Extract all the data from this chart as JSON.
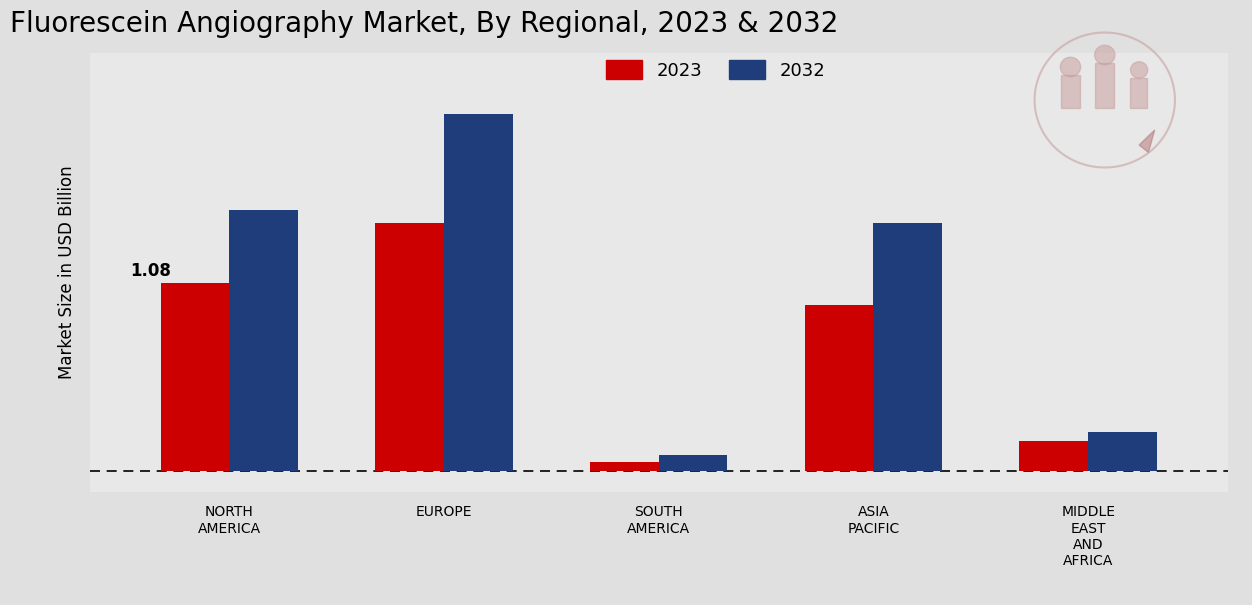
{
  "title": "Fluorescein Angiography Market, By Regional, 2023 & 2032",
  "ylabel": "Market Size in USD Billion",
  "categories": [
    "NORTH\nAMERICA",
    "EUROPE",
    "SOUTH\nAMERICA",
    "ASIA\nPACIFIC",
    "MIDDLE\nEAST\nAND\nAFRICA"
  ],
  "values_2023": [
    1.08,
    1.42,
    0.05,
    0.95,
    0.17
  ],
  "values_2032": [
    1.5,
    2.05,
    0.09,
    1.42,
    0.22
  ],
  "color_2023": "#cc0000",
  "color_2032": "#1f3d7a",
  "annotation_text": "1.08",
  "background_color_light": "#f0f0f0",
  "background_color_dark": "#d0d0d0",
  "bar_width": 0.32,
  "title_fontsize": 20,
  "label_fontsize": 12,
  "tick_fontsize": 10,
  "legend_fontsize": 13
}
